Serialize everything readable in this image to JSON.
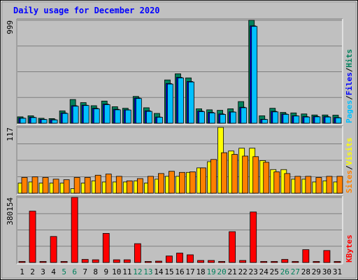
{
  "chart_data": {
    "type": "bar",
    "title": "Daily usage for December 2020",
    "colors": {
      "hits": "#00805c",
      "files": "#0000ff",
      "pages": "#00c0ff",
      "visits": "#ffff00",
      "sites": "#ff8000",
      "kbytes": "#ff0000",
      "title": "#0000ff",
      "weekend_day": "#00805c",
      "weekday": "#000000",
      "grid": "#7f7f7f",
      "background": "#c0c0c0"
    },
    "categories": [
      "1",
      "2",
      "3",
      "4",
      "5",
      "6",
      "7",
      "8",
      "9",
      "10",
      "11",
      "12",
      "13",
      "14",
      "15",
      "16",
      "17",
      "18",
      "19",
      "20",
      "21",
      "22",
      "23",
      "24",
      "25",
      "26",
      "27",
      "28",
      "29",
      "30",
      "31"
    ],
    "weekend_days": [
      "5",
      "6",
      "12",
      "13",
      "19",
      "20",
      "26",
      "27"
    ],
    "panels": [
      {
        "id": "hits-files-pages",
        "ymax_label": "999",
        "ylim": [
          0,
          999
        ],
        "legend": [
          {
            "text": "Pages",
            "color": "#00c0ff"
          },
          {
            "text": "/",
            "color": "#000000"
          },
          {
            "text": "Files",
            "color": "#0000ff"
          },
          {
            "text": "/",
            "color": "#000000"
          },
          {
            "text": "Hits",
            "color": "#00805c"
          }
        ],
        "series": [
          {
            "name": "Hits",
            "color": "#00805c",
            "values": [
              62,
              72,
              48,
              45,
              120,
              230,
              200,
              170,
              215,
              160,
              145,
              260,
              150,
              95,
              420,
              480,
              440,
              140,
              130,
              125,
              140,
              210,
              999,
              72,
              145,
              105,
              100,
              90,
              80,
              80,
              78
            ]
          },
          {
            "name": "Files",
            "color": "#0000ff",
            "values": [
              50,
              58,
              38,
              35,
              100,
              170,
              175,
              145,
              185,
              135,
              130,
              245,
              120,
              60,
              385,
              445,
              405,
              118,
              105,
              90,
              110,
              155,
              945,
              38,
              115,
              90,
              72,
              64,
              66,
              64,
              55
            ]
          },
          {
            "name": "Pages",
            "color": "#00c0ff",
            "values": [
              48,
              55,
              36,
              32,
              95,
              165,
              172,
              140,
              180,
              130,
              128,
              240,
              115,
              58,
              380,
              440,
              400,
              112,
              100,
              85,
              108,
              150,
              940,
              36,
              110,
              86,
              70,
              60,
              62,
              60,
              52
            ]
          }
        ]
      },
      {
        "id": "visits-sites",
        "ymax_label": "117",
        "ylim": [
          0,
          117
        ],
        "legend": [
          {
            "text": "Sites",
            "color": "#ff8000"
          },
          {
            "text": "/",
            "color": "#000000"
          },
          {
            "text": "Visits",
            "color": "#ffff00"
          }
        ],
        "series": [
          {
            "name": "Visits",
            "color": "#ffff00",
            "values": [
              18,
              20,
              18,
              18,
              18,
              8,
              18,
              22,
              20,
              20,
              20,
              22,
              18,
              25,
              30,
              30,
              37,
              45,
              56,
              117,
              75,
              80,
              80,
              58,
              42,
              42,
              25,
              25,
              20,
              22,
              20
            ]
          },
          {
            "name": "Sites",
            "color": "#ff8000",
            "values": [
              28,
              29,
              28,
              25,
              24,
              28,
              28,
              32,
              34,
              30,
              22,
              26,
              30,
              35,
              39,
              37,
              38,
              45,
              60,
              72,
              69,
              66,
              65,
              55,
              38,
              35,
              30,
              30,
              28,
              30,
              30
            ]
          }
        ]
      },
      {
        "id": "kbytes",
        "ymax_label": "380154",
        "ylim": [
          0,
          380154
        ],
        "legend": [
          {
            "text": "KBytes",
            "color": "#ff0000"
          }
        ],
        "series": [
          {
            "name": "KBytes",
            "color": "#ff0000",
            "values": [
              0,
              300000,
              0,
              152000,
              0,
              380154,
              18000,
              16000,
              170000,
              16000,
              16000,
              110000,
              0,
              8000,
              38000,
              55000,
              45000,
              12000,
              12000,
              0,
              180000,
              12000,
              295000,
              0,
              0,
              18000,
              0,
              75000,
              0,
              70000,
              0
            ]
          }
        ]
      }
    ]
  }
}
